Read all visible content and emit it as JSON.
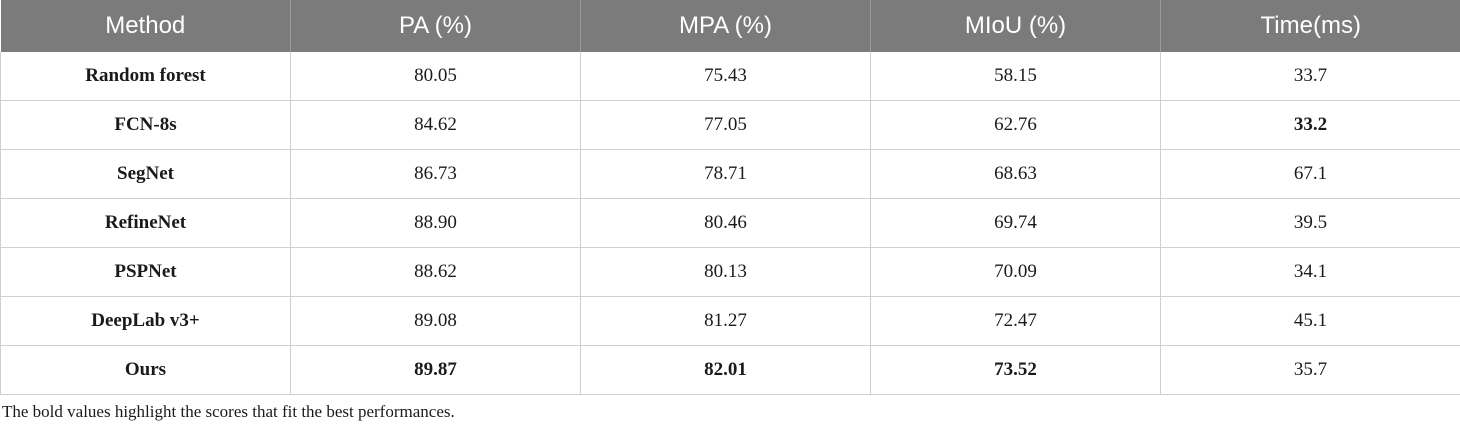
{
  "table": {
    "headers": [
      "Method",
      "PA (%)",
      "MPA (%)",
      "MIoU (%)",
      "Time(ms)"
    ],
    "rows": [
      {
        "method": "Random forest",
        "pa": "80.05",
        "mpa": "75.43",
        "miou": "58.15",
        "time": "33.7",
        "bold": []
      },
      {
        "method": "FCN-8s",
        "pa": "84.62",
        "mpa": "77.05",
        "miou": "62.76",
        "time": "33.2",
        "bold": [
          "time"
        ]
      },
      {
        "method": "SegNet",
        "pa": "86.73",
        "mpa": "78.71",
        "miou": "68.63",
        "time": "67.1",
        "bold": []
      },
      {
        "method": "RefineNet",
        "pa": "88.90",
        "mpa": "80.46",
        "miou": "69.74",
        "time": "39.5",
        "bold": []
      },
      {
        "method": "PSPNet",
        "pa": "88.62",
        "mpa": "80.13",
        "miou": "70.09",
        "time": "34.1",
        "bold": []
      },
      {
        "method": "DeepLab v3+",
        "pa": "89.08",
        "mpa": "81.27",
        "miou": "72.47",
        "time": "45.1",
        "bold": []
      },
      {
        "method": "Ours",
        "pa": "89.87",
        "mpa": "82.01",
        "miou": "73.52",
        "time": "35.7",
        "bold": [
          "pa",
          "mpa",
          "miou"
        ]
      }
    ]
  },
  "footnote": "The bold values highlight the scores that fit the best performances."
}
